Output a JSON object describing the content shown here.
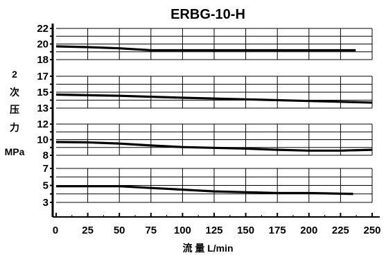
{
  "chart_data": {
    "type": "line",
    "title": "ERBG-10-H",
    "xlabel": "流 量 L/min",
    "ylabel_lines": [
      "2",
      "次",
      "压",
      "力",
      "MPa"
    ],
    "x_ticks": [
      0,
      25,
      50,
      75,
      100,
      125,
      150,
      175,
      200,
      225,
      250
    ],
    "xlim": [
      0,
      250
    ],
    "grid": true,
    "panels": [
      {
        "ylim": [
          18,
          22
        ],
        "y_tick_labels": [
          18,
          20,
          22
        ],
        "series": {
          "x": [
            0,
            25,
            50,
            75,
            100,
            150,
            200,
            237
          ],
          "y": [
            19.7,
            19.6,
            19.45,
            19.2,
            19.2,
            19.2,
            19.2,
            19.2
          ]
        }
      },
      {
        "ylim": [
          13,
          17
        ],
        "y_tick_labels": [
          13,
          15,
          17
        ],
        "series": {
          "x": [
            0,
            50,
            100,
            150,
            200,
            250
          ],
          "y": [
            14.7,
            14.55,
            14.3,
            14.1,
            13.9,
            13.7
          ]
        }
      },
      {
        "ylim": [
          8,
          12
        ],
        "y_tick_labels": [
          8,
          10,
          12
        ],
        "series": {
          "x": [
            0,
            25,
            50,
            75,
            100,
            125,
            150,
            175,
            200,
            225,
            250
          ],
          "y": [
            9.7,
            9.65,
            9.5,
            9.25,
            9.05,
            8.95,
            8.85,
            8.7,
            8.6,
            8.6,
            8.7
          ]
        }
      },
      {
        "ylim": [
          3,
          7
        ],
        "y_tick_labels": [
          3,
          5,
          7
        ],
        "series": {
          "x": [
            0,
            25,
            50,
            75,
            100,
            125,
            150,
            175,
            200,
            235
          ],
          "y": [
            4.9,
            4.9,
            4.9,
            4.7,
            4.5,
            4.3,
            4.2,
            4.1,
            4.1,
            4.0
          ]
        }
      }
    ]
  }
}
